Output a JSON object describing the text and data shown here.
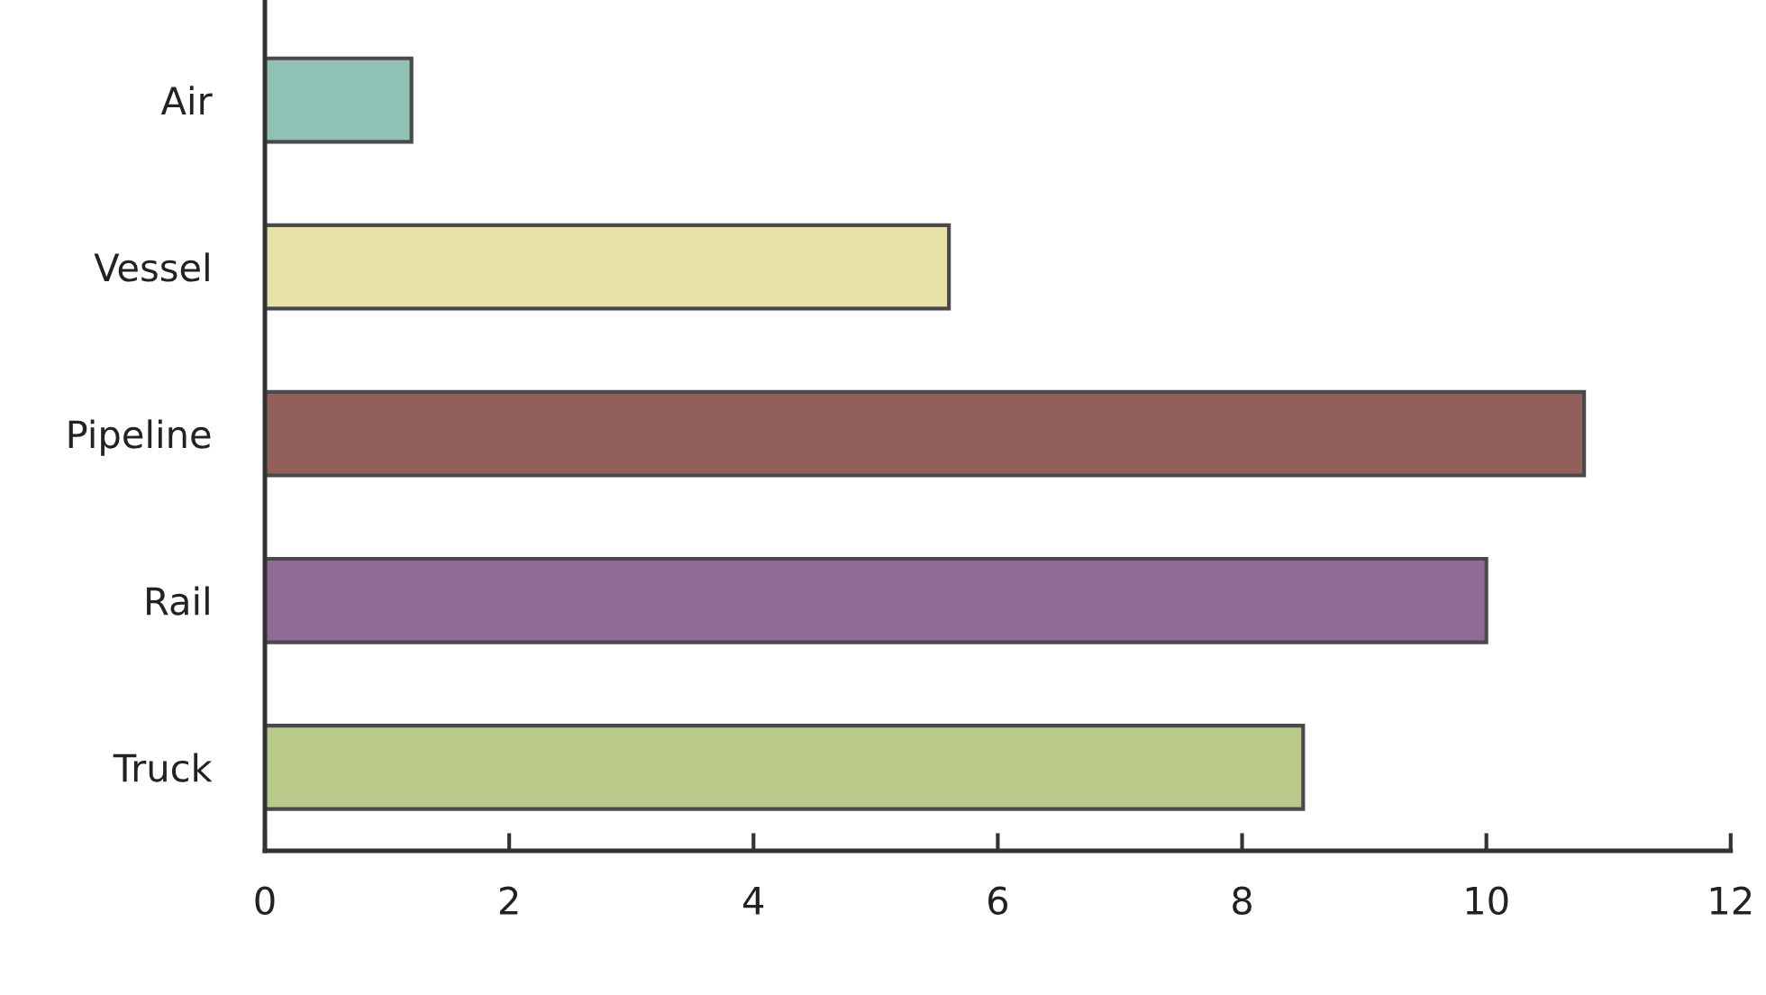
{
  "chart_data": {
    "type": "bar",
    "orientation": "horizontal",
    "categories": [
      "Air",
      "Vessel",
      "Pipeline",
      "Rail",
      "Truck"
    ],
    "values": [
      1.2,
      5.6,
      10.8,
      10.0,
      8.5
    ],
    "colors": [
      "#8fc1b5",
      "#e8e2aa",
      "#925f5a",
      "#8f6b96",
      "#b8c98a"
    ],
    "xlim": [
      0,
      12
    ],
    "xticks": [
      0,
      2,
      4,
      6,
      8,
      10,
      12
    ]
  }
}
